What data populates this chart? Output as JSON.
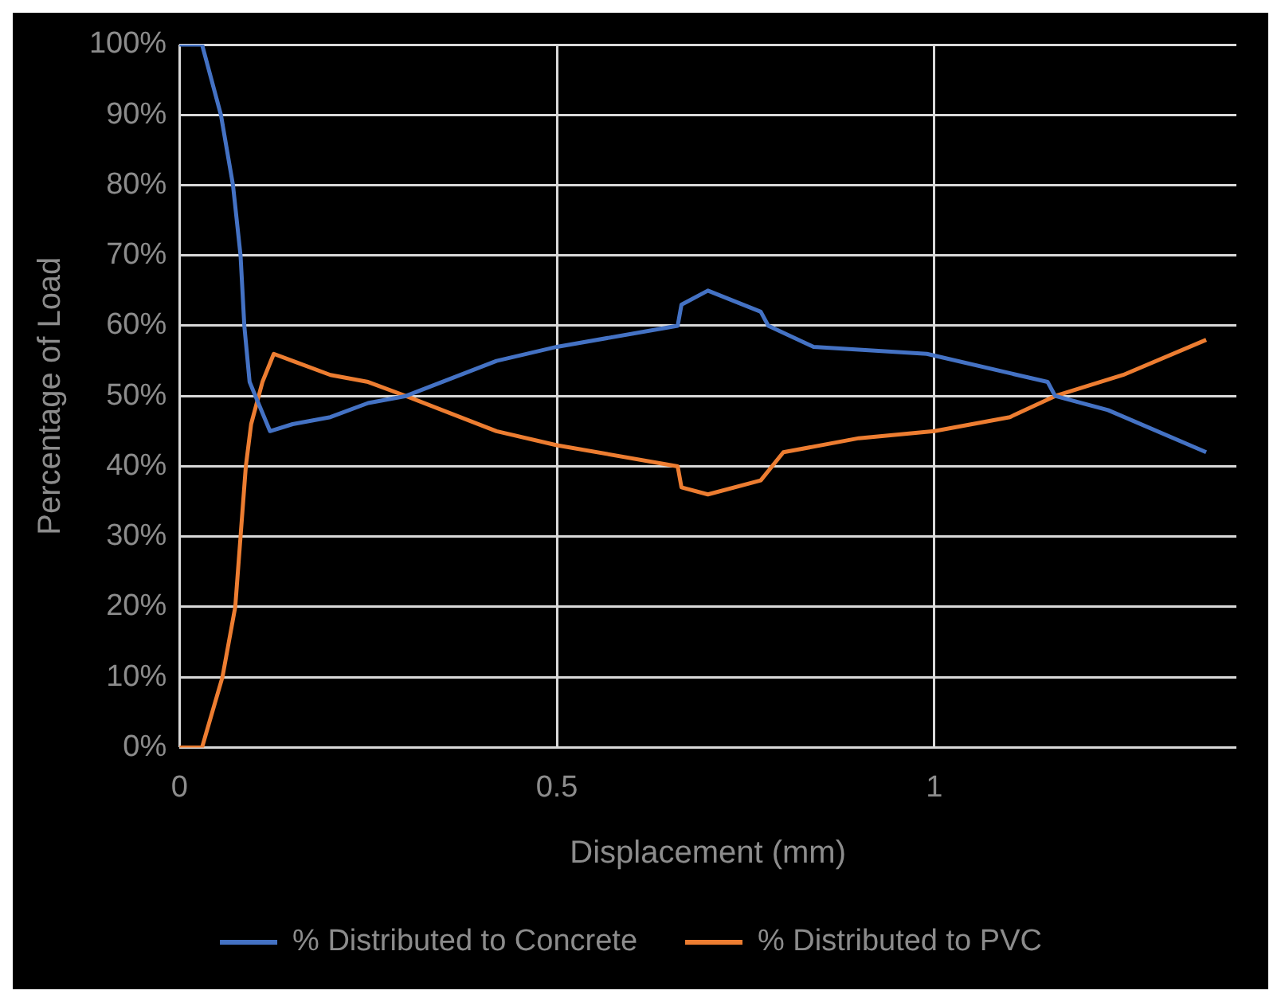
{
  "chart_data": {
    "type": "line",
    "xlabel": "Displacement (mm)",
    "ylabel": "Percentage of Load",
    "xlim": [
      0,
      1.4
    ],
    "xticks": [
      0,
      0.5,
      1
    ],
    "ylim": [
      0,
      100
    ],
    "yticks": [
      {
        "value": 0,
        "label": "0%"
      },
      {
        "value": 10,
        "label": "10%"
      },
      {
        "value": 20,
        "label": "20%"
      },
      {
        "value": 30,
        "label": "30%"
      },
      {
        "value": 40,
        "label": "40%"
      },
      {
        "value": 50,
        "label": "50%"
      },
      {
        "value": 60,
        "label": "60%"
      },
      {
        "value": 70,
        "label": "70%"
      },
      {
        "value": 80,
        "label": "80%"
      },
      {
        "value": 90,
        "label": "90%"
      },
      {
        "value": 100,
        "label": "100%"
      }
    ],
    "grid": true,
    "legend": "bottom",
    "marker": "none",
    "line_style": "solid",
    "series": [
      {
        "name": "% Distributed to Concrete",
        "color": "#4472c4",
        "x": [
          0,
          0.03,
          0.055,
          0.071,
          0.081,
          0.086,
          0.093,
          0.12,
          0.15,
          0.2,
          0.25,
          0.3,
          0.42,
          0.5,
          0.66,
          0.665,
          0.7,
          0.77,
          0.78,
          0.84,
          0.99,
          1.15,
          1.16,
          1.23,
          1.36
        ],
        "values": [
          100,
          100,
          90,
          80,
          70,
          60,
          52,
          45,
          46,
          47,
          49,
          50,
          55,
          57,
          60,
          63,
          65,
          62,
          60,
          57,
          56,
          52,
          50,
          48,
          42
        ]
      },
      {
        "name": "% Distributed to PVC",
        "color": "#ed7d31",
        "x": [
          0,
          0.03,
          0.057,
          0.074,
          0.081,
          0.088,
          0.095,
          0.11,
          0.125,
          0.15,
          0.2,
          0.25,
          0.3,
          0.42,
          0.5,
          0.66,
          0.665,
          0.7,
          0.77,
          0.8,
          0.9,
          1.0,
          1.1,
          1.16,
          1.25,
          1.36
        ],
        "values": [
          0,
          0,
          10,
          20,
          30,
          40,
          46,
          52,
          56,
          55,
          53,
          52,
          50,
          45,
          43,
          40,
          37,
          36,
          38,
          42,
          44,
          45,
          47,
          50,
          53,
          58
        ]
      }
    ]
  }
}
